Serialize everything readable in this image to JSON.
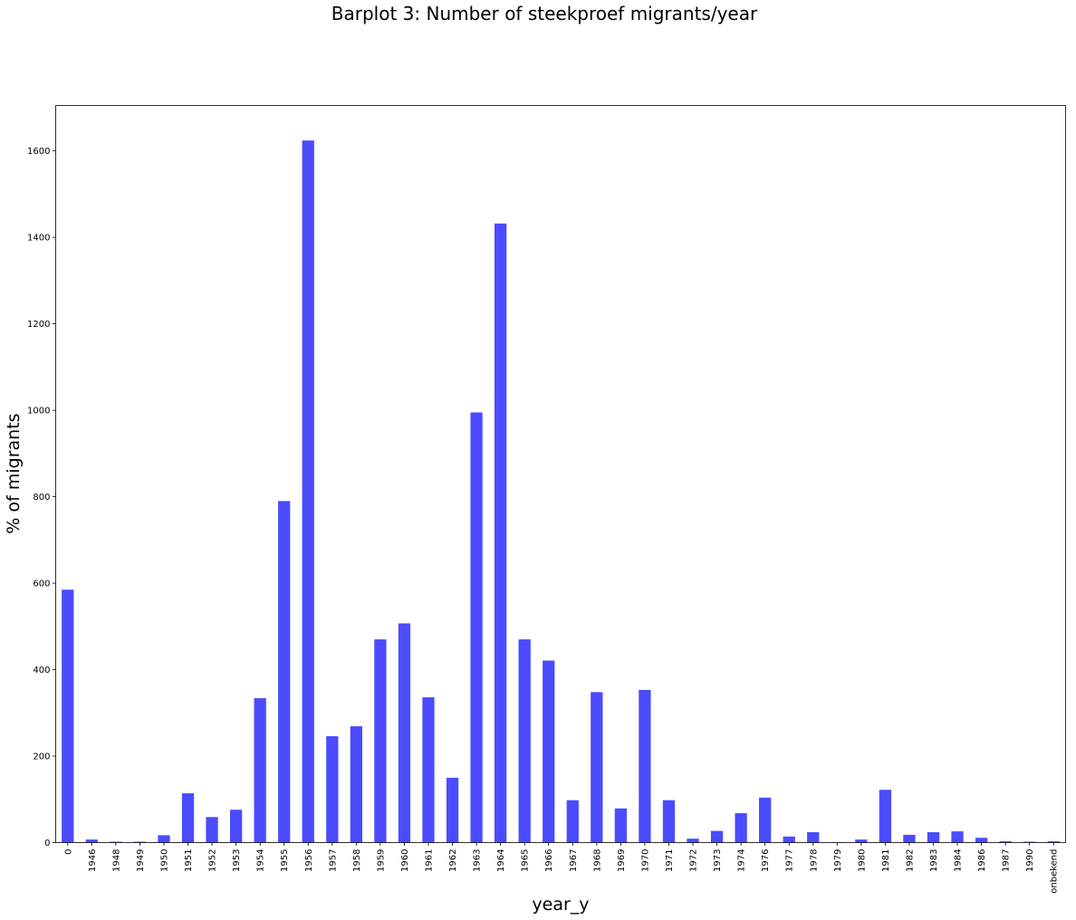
{
  "chart_data": {
    "type": "bar",
    "title": "Barplot 3: Number of steekproef migrants/year",
    "xlabel": "year_y",
    "ylabel": "% of migrants",
    "categories": [
      "0",
      "1946",
      "1948",
      "1949",
      "1950",
      "1951",
      "1952",
      "1953",
      "1954",
      "1955",
      "1956",
      "1957",
      "1958",
      "1959",
      "1960",
      "1961",
      "1962",
      "1963",
      "1964",
      "1965",
      "1966",
      "1967",
      "1968",
      "1969",
      "1970",
      "1971",
      "1972",
      "1973",
      "1974",
      "1976",
      "1977",
      "1978",
      "1979",
      "1980",
      "1981",
      "1982",
      "1983",
      "1984",
      "1986",
      "1987",
      "1990",
      "onbekend"
    ],
    "values": [
      585,
      7,
      2,
      2,
      17,
      114,
      59,
      76,
      334,
      790,
      1624,
      246,
      269,
      470,
      507,
      336,
      150,
      995,
      1432,
      470,
      421,
      98,
      348,
      79,
      353,
      98,
      9,
      27,
      68,
      104,
      14,
      24,
      1,
      7,
      122,
      18,
      24,
      26,
      11,
      3,
      2,
      3
    ],
    "ylim": [
      0,
      1705
    ],
    "yticks": [
      0,
      200,
      400,
      600,
      800,
      1000,
      1200,
      1400,
      1600
    ],
    "bar_color": "#4b4bff",
    "grid": false,
    "legend": "none"
  }
}
